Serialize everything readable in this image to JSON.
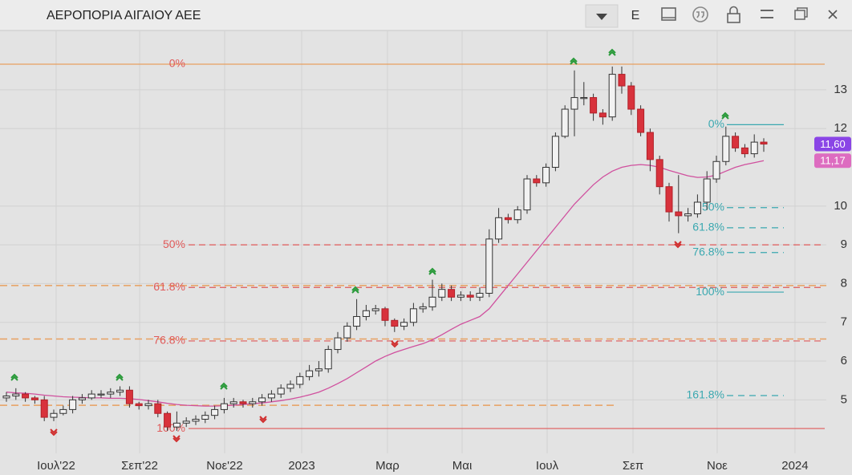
{
  "window": {
    "title": "ΑΕΡΟΠΟΡΙΑ ΑΙΓΑΙΟΥ ΑΕΕ",
    "mode": "E"
  },
  "chart_data": {
    "type": "candlestick",
    "open": [
      5.05,
      5.1,
      5.15,
      5.05,
      5.0,
      4.55,
      4.65,
      4.75,
      5.0,
      5.05,
      5.15,
      5.15,
      5.2,
      5.25,
      4.9,
      4.85,
      4.9,
      4.65,
      4.3,
      4.4,
      4.45,
      4.5,
      4.6,
      4.75,
      4.9,
      4.95,
      4.9,
      4.95,
      5.05,
      5.15,
      5.3,
      5.4,
      5.6,
      5.75,
      5.8,
      6.3,
      6.6,
      6.9,
      7.15,
      7.3,
      7.35,
      7.05,
      6.9,
      7.0,
      7.35,
      7.4,
      7.65,
      7.85,
      7.65,
      7.7,
      7.65,
      7.75,
      9.15,
      9.7,
      9.65,
      9.9,
      10.7,
      10.6,
      11.0,
      11.8,
      12.5,
      12.8,
      12.8,
      12.4,
      12.3,
      13.4,
      13.1,
      12.5,
      11.9,
      11.2,
      10.5,
      9.85,
      9.75,
      9.8,
      10.1,
      10.7,
      11.15,
      11.8,
      11.5,
      11.35,
      11.65
    ],
    "high": [
      5.2,
      5.3,
      5.2,
      5.1,
      5.1,
      4.75,
      4.85,
      5.1,
      5.15,
      5.25,
      5.25,
      5.3,
      5.35,
      5.35,
      4.95,
      5.0,
      5.0,
      4.7,
      4.7,
      4.55,
      4.6,
      4.7,
      4.85,
      5.05,
      5.05,
      5.0,
      5.05,
      5.15,
      5.25,
      5.4,
      5.5,
      5.7,
      5.9,
      6.0,
      6.4,
      6.75,
      7.0,
      7.6,
      7.45,
      7.45,
      7.4,
      7.1,
      7.1,
      7.5,
      7.5,
      8.1,
      8.0,
      7.95,
      7.8,
      7.8,
      7.9,
      9.4,
      9.95,
      9.8,
      10.0,
      10.8,
      10.8,
      11.1,
      11.9,
      12.6,
      13.5,
      13.2,
      12.9,
      12.5,
      13.6,
      13.6,
      13.2,
      12.6,
      12.0,
      11.3,
      10.6,
      10.8,
      9.95,
      10.3,
      10.9,
      11.3,
      12.05,
      11.9,
      11.6,
      11.85,
      11.75
    ],
    "low": [
      4.95,
      5.0,
      4.95,
      4.9,
      4.45,
      4.45,
      4.6,
      4.65,
      4.9,
      5.0,
      5.05,
      5.05,
      5.1,
      4.8,
      4.75,
      4.75,
      4.55,
      4.2,
      4.2,
      4.3,
      4.35,
      4.4,
      4.5,
      4.65,
      4.8,
      4.8,
      4.8,
      4.85,
      4.95,
      5.05,
      5.2,
      5.3,
      5.5,
      5.6,
      5.7,
      6.2,
      6.5,
      6.8,
      7.05,
      7.2,
      6.9,
      6.75,
      6.8,
      6.9,
      7.25,
      7.3,
      7.55,
      7.55,
      7.55,
      7.55,
      7.55,
      7.65,
      9.05,
      9.55,
      9.55,
      9.8,
      10.5,
      10.5,
      10.9,
      11.75,
      11.8,
      12.6,
      12.2,
      12.1,
      12.2,
      12.9,
      12.35,
      11.8,
      10.9,
      10.3,
      9.6,
      9.3,
      9.6,
      9.7,
      9.9,
      10.6,
      11.05,
      11.4,
      11.25,
      11.25,
      11.4
    ],
    "close": [
      5.1,
      5.15,
      5.05,
      5.0,
      4.55,
      4.65,
      4.75,
      5.0,
      5.05,
      5.15,
      5.15,
      5.2,
      5.25,
      4.9,
      4.85,
      4.9,
      4.65,
      4.3,
      4.4,
      4.45,
      4.5,
      4.6,
      4.75,
      4.9,
      4.95,
      4.9,
      4.95,
      5.05,
      5.15,
      5.3,
      5.4,
      5.6,
      5.75,
      5.8,
      6.3,
      6.6,
      6.9,
      7.15,
      7.3,
      7.35,
      7.05,
      6.9,
      7.0,
      7.35,
      7.4,
      7.65,
      7.85,
      7.65,
      7.7,
      7.65,
      7.75,
      9.15,
      9.7,
      9.65,
      9.9,
      10.7,
      10.6,
      11.0,
      11.8,
      12.5,
      12.8,
      12.8,
      12.4,
      12.3,
      13.4,
      13.1,
      12.5,
      11.9,
      11.2,
      10.5,
      9.85,
      9.75,
      9.8,
      10.1,
      10.7,
      11.15,
      11.8,
      11.5,
      11.35,
      11.65,
      11.6
    ],
    "up_color": "#f2f2f2",
    "down_color": "#d8323c",
    "ma": {
      "color": "#d0509e",
      "values": [
        5.2,
        5.18,
        5.17,
        5.15,
        5.12,
        5.1,
        5.08,
        5.07,
        5.06,
        5.05,
        5.05,
        5.04,
        5.04,
        5.03,
        5.01,
        4.98,
        4.95,
        4.91,
        4.88,
        4.86,
        4.85,
        4.84,
        4.84,
        4.85,
        4.86,
        4.88,
        4.9,
        4.92,
        4.95,
        4.98,
        5.02,
        5.07,
        5.13,
        5.2,
        5.3,
        5.42,
        5.55,
        5.7,
        5.85,
        6.0,
        6.12,
        6.22,
        6.3,
        6.38,
        6.45,
        6.55,
        6.68,
        6.82,
        6.95,
        7.05,
        7.15,
        7.35,
        7.65,
        7.95,
        8.25,
        8.55,
        8.85,
        9.15,
        9.45,
        9.75,
        10.05,
        10.3,
        10.55,
        10.75,
        10.9,
        11.0,
        11.05,
        11.07,
        11.05,
        11.0,
        10.92,
        10.85,
        10.78,
        10.74,
        10.75,
        10.8,
        10.9,
        11.0,
        11.07,
        11.12,
        11.17
      ]
    },
    "badges": [
      {
        "value": 11.6,
        "label": "11,60",
        "color": "#8a45e6"
      },
      {
        "value": 11.17,
        "label": "11,17",
        "color": "#dd6cc0"
      }
    ],
    "fib_main": {
      "levels": [
        13.66,
        9.0,
        7.9,
        6.52,
        4.26
      ],
      "labels": [
        "0%",
        "50%",
        "61.8%",
        "76.8%",
        "100%"
      ],
      "colors": [
        "#e8a060",
        "#e05a5a",
        "#e05a5a",
        "#e05a5a",
        "#e05a5a"
      ]
    },
    "fib_small": {
      "levels": [
        12.1,
        9.96,
        9.44,
        8.8,
        7.78,
        5.11
      ],
      "labels": [
        "0%",
        "50%",
        "61.8%",
        "76.8%",
        "100%",
        "161.8%"
      ],
      "color": "#3aa8b0"
    },
    "support_lines": {
      "levels": [
        7.95,
        6.57,
        4.86
      ],
      "color": "#e8a060"
    },
    "xlim": [
      -0.678,
      86.61
    ],
    "xticks": [
      {
        "value": 5.25,
        "label": "Ιουλ'22"
      },
      {
        "value": 14.07,
        "label": "Σεπ'22"
      },
      {
        "value": 23.05,
        "label": "Νοε'22"
      },
      {
        "value": 31.19,
        "label": "2023"
      },
      {
        "value": 40.25,
        "label": "Μαρ"
      },
      {
        "value": 48.14,
        "label": "Μαι"
      },
      {
        "value": 57.12,
        "label": "Ιουλ"
      },
      {
        "value": 66.19,
        "label": "Σεπ"
      },
      {
        "value": 75.08,
        "label": "Νοε"
      },
      {
        "value": 83.3,
        "label": "2024"
      }
    ],
    "ylim": [
      3.62,
      14.53
    ],
    "yticks": [
      5,
      6,
      7,
      8,
      9,
      10,
      12,
      13
    ],
    "grid": true
  }
}
